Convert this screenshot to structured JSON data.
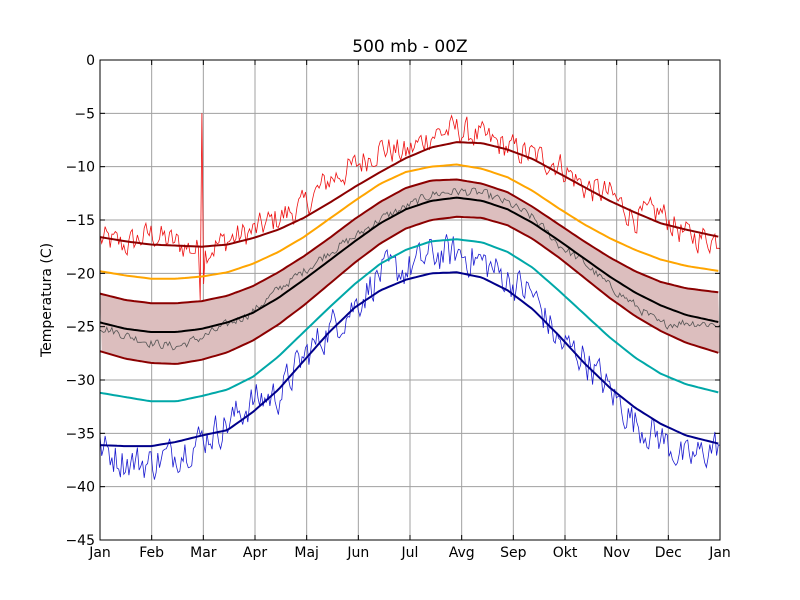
{
  "chart_data": {
    "type": "line",
    "title": "500 mb - 00Z",
    "xlabel": "",
    "ylabel": "Temperatura (C)",
    "ylim": [
      -45,
      0
    ],
    "yticks": [
      0,
      -5,
      -10,
      -15,
      -20,
      -25,
      -30,
      -35,
      -40,
      -45
    ],
    "xticks": [
      "Jan",
      "Feb",
      "Mar",
      "Apr",
      "Maj",
      "Jun",
      "Jul",
      "Avg",
      "Sep",
      "Okt",
      "Nov",
      "Dec",
      "Jan"
    ],
    "grid": true,
    "legend": "none",
    "x": [
      0,
      15,
      30,
      45,
      60,
      75,
      90,
      105,
      120,
      135,
      150,
      165,
      180,
      195,
      210,
      225,
      240,
      255,
      270,
      285,
      300,
      315,
      330,
      345,
      365
    ],
    "series": [
      {
        "color": "#8b0000",
        "values": [
          -16.6,
          -17.0,
          -17.3,
          -17.4,
          -17.5,
          -17.3,
          -16.7,
          -15.9,
          -14.8,
          -13.4,
          -11.9,
          -10.5,
          -9.2,
          -8.2,
          -7.7,
          -7.8,
          -8.4,
          -9.3,
          -10.6,
          -11.9,
          -13.2,
          -14.3,
          -15.3,
          -15.9,
          -16.6
        ]
      },
      {
        "color": "#ffa500",
        "values": [
          -19.8,
          -20.2,
          -20.5,
          -20.5,
          -20.3,
          -19.9,
          -19.1,
          -18.0,
          -16.6,
          -14.9,
          -13.2,
          -11.6,
          -10.5,
          -10.0,
          -9.8,
          -10.2,
          -11.0,
          -12.3,
          -13.9,
          -15.4,
          -16.7,
          -17.8,
          -18.7,
          -19.3,
          -19.8
        ]
      },
      {
        "color": "#8b0000",
        "values": [
          -21.9,
          -22.5,
          -22.8,
          -22.8,
          -22.6,
          -22.1,
          -21.2,
          -19.9,
          -18.4,
          -16.7,
          -14.9,
          -13.3,
          -12.0,
          -11.3,
          -11.2,
          -11.6,
          -12.4,
          -13.8,
          -15.4,
          -17.0,
          -18.5,
          -19.8,
          -20.8,
          -21.4,
          -21.8
        ]
      },
      {
        "color": "#000000",
        "values": [
          -24.6,
          -25.2,
          -25.5,
          -25.5,
          -25.2,
          -24.6,
          -23.7,
          -22.3,
          -20.6,
          -18.8,
          -17.0,
          -15.3,
          -14.0,
          -13.2,
          -12.9,
          -13.2,
          -14.0,
          -15.3,
          -16.9,
          -18.6,
          -20.3,
          -21.8,
          -23.0,
          -23.9,
          -24.6
        ]
      },
      {
        "color": "#8b0000",
        "values": [
          -27.3,
          -28.0,
          -28.4,
          -28.5,
          -28.1,
          -27.4,
          -26.3,
          -24.8,
          -23.0,
          -21.0,
          -19.0,
          -17.2,
          -15.8,
          -15.0,
          -14.7,
          -14.8,
          -15.5,
          -16.8,
          -18.5,
          -20.4,
          -22.3,
          -24.0,
          -25.4,
          -26.5,
          -27.5
        ]
      },
      {
        "color": "#00a8a8",
        "values": [
          -31.2,
          -31.6,
          -32.0,
          -32.0,
          -31.5,
          -30.9,
          -29.7,
          -27.8,
          -25.5,
          -23.2,
          -21.0,
          -19.1,
          -17.8,
          -17.0,
          -16.8,
          -17.1,
          -18.0,
          -19.5,
          -21.6,
          -23.8,
          -26.0,
          -27.9,
          -29.4,
          -30.4,
          -31.2
        ]
      },
      {
        "color": "#00008b",
        "values": [
          -36.1,
          -36.2,
          -36.2,
          -35.8,
          -35.2,
          -34.7,
          -33.0,
          -30.9,
          -28.2,
          -25.5,
          -23.2,
          -21.6,
          -20.6,
          -20.0,
          -19.9,
          -20.4,
          -21.6,
          -23.4,
          -25.8,
          -28.4,
          -30.7,
          -32.6,
          -34.1,
          -35.2,
          -36.0
        ]
      }
    ],
    "band": {
      "fill": "#dcbebe",
      "upper_series": 2,
      "lower_series": 4
    },
    "observed": [
      {
        "color": "#ee1111",
        "noise": 1.9,
        "x": [
          0,
          15,
          30,
          45,
          60,
          75,
          90,
          105,
          120,
          135,
          150,
          165,
          180,
          195,
          210,
          225,
          240,
          255,
          270,
          285,
          300,
          315,
          330,
          345,
          365
        ],
        "values": [
          -16.8,
          -17.4,
          -16.3,
          -17.2,
          -18.0,
          -16.9,
          -16.1,
          -14.8,
          -13.7,
          -11.2,
          -10.0,
          -8.2,
          -8.8,
          -7.0,
          -6.5,
          -7.3,
          -8.2,
          -9.0,
          -9.7,
          -11.9,
          -12.6,
          -14.8,
          -14.3,
          -16.5,
          -16.8
        ]
      },
      {
        "color": "#555555",
        "noise": 0.6,
        "x": [
          0,
          15,
          30,
          45,
          60,
          75,
          90,
          105,
          120,
          135,
          150,
          165,
          180,
          195,
          210,
          225,
          240,
          255,
          270,
          285,
          300,
          315,
          330,
          345,
          365
        ],
        "values": [
          -25.0,
          -25.8,
          -26.5,
          -26.9,
          -26.0,
          -24.8,
          -23.6,
          -21.5,
          -19.8,
          -18.0,
          -16.6,
          -14.9,
          -13.8,
          -12.6,
          -12.3,
          -12.5,
          -13.4,
          -14.8,
          -17.3,
          -19.0,
          -21.2,
          -23.0,
          -24.8,
          -24.6,
          -24.8
        ]
      },
      {
        "color": "#1c1cd0",
        "noise": 2.4,
        "x": [
          0,
          15,
          30,
          45,
          60,
          75,
          90,
          105,
          120,
          135,
          150,
          165,
          180,
          195,
          210,
          225,
          240,
          255,
          270,
          285,
          300,
          315,
          330,
          345,
          365
        ],
        "values": [
          -36.4,
          -37.6,
          -37.8,
          -36.8,
          -35.5,
          -34.1,
          -32.0,
          -31.4,
          -27.9,
          -25.2,
          -23.0,
          -20.0,
          -19.7,
          -18.3,
          -18.1,
          -18.9,
          -20.6,
          -22.0,
          -26.5,
          -27.8,
          -31.0,
          -34.0,
          -35.4,
          -37.6,
          -36.0
        ]
      }
    ],
    "spikes": [
      {
        "series": 0,
        "x": 60,
        "value": -5.0
      },
      {
        "series": 0,
        "x": 59,
        "value": -22.5
      },
      {
        "series": 0,
        "x": 61,
        "value": -21.0
      }
    ]
  }
}
